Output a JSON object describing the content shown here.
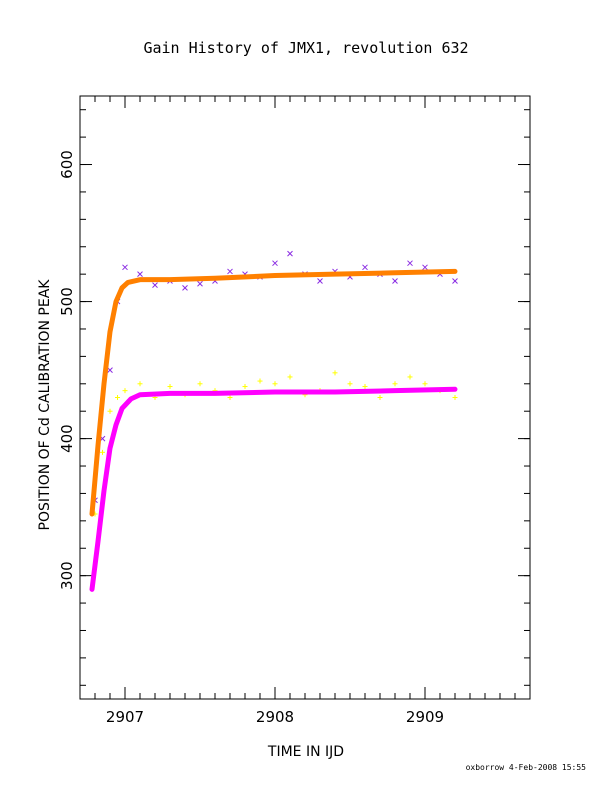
{
  "chart_data": {
    "type": "scatter",
    "title": "Gain History of JMX1, revolution 632",
    "xlabel": "TIME IN IJD",
    "ylabel": "POSITION OF Cd CALIBRATION PEAK",
    "xlim": [
      2906.7,
      2909.7
    ],
    "ylim": [
      210,
      650
    ],
    "xticks": [
      2907,
      2908,
      2909
    ],
    "xtick_labels": [
      "2907",
      "2908",
      "2909"
    ],
    "yticks": [
      300,
      400,
      500,
      600
    ],
    "ytick_labels": [
      "300",
      "400",
      "500",
      "600"
    ],
    "grid": false,
    "series": [
      {
        "marker": "x",
        "color": "#8a2be2",
        "x": [
          2906.8,
          2906.85,
          2906.9,
          2906.95,
          2907.0,
          2907.1,
          2907.2,
          2907.3,
          2907.4,
          2907.5,
          2907.6,
          2907.7,
          2907.8,
          2907.9,
          2908.0,
          2908.1,
          2908.2,
          2908.3,
          2908.4,
          2908.5,
          2908.6,
          2908.7,
          2908.8,
          2908.9,
          2909.0,
          2909.1,
          2909.2
        ],
        "y": [
          355,
          400,
          450,
          500,
          525,
          520,
          512,
          515,
          510,
          513,
          515,
          522,
          520,
          518,
          528,
          535,
          520,
          515,
          522,
          518,
          525,
          520,
          515,
          528,
          525,
          520,
          515
        ]
      },
      {
        "marker": "+",
        "color": "#ffff00",
        "x": [
          2906.8,
          2906.85,
          2906.9,
          2906.95,
          2907.0,
          2907.1,
          2907.2,
          2907.3,
          2907.4,
          2907.5,
          2907.6,
          2907.7,
          2907.8,
          2907.9,
          2908.0,
          2908.1,
          2908.2,
          2908.3,
          2908.4,
          2908.5,
          2908.6,
          2908.7,
          2908.8,
          2908.9,
          2909.0,
          2909.1,
          2909.2
        ],
        "y": [
          345,
          390,
          420,
          430,
          435,
          440,
          430,
          438,
          432,
          440,
          435,
          430,
          438,
          442,
          440,
          445,
          432,
          435,
          448,
          440,
          438,
          430,
          440,
          445,
          440,
          435,
          430
        ]
      },
      {
        "marker": "line",
        "color": "#ff8000",
        "x": [
          2906.78,
          2906.82,
          2906.86,
          2906.9,
          2906.94,
          2906.98,
          2907.02,
          2907.1,
          2907.3,
          2907.6,
          2908.0,
          2908.4,
          2908.8,
          2909.2
        ],
        "y": [
          345,
          395,
          440,
          478,
          500,
          510,
          514,
          516,
          516,
          517,
          519,
          520,
          521,
          522
        ]
      },
      {
        "marker": "line",
        "color": "#ff00ff",
        "x": [
          2906.78,
          2906.82,
          2906.86,
          2906.9,
          2906.94,
          2906.98,
          2907.04,
          2907.1,
          2907.3,
          2907.6,
          2908.0,
          2908.4,
          2908.8,
          2909.2
        ],
        "y": [
          290,
          325,
          362,
          393,
          410,
          422,
          429,
          432,
          433,
          433,
          434,
          434,
          435,
          436
        ]
      }
    ]
  },
  "footer": "oxborrow  4-Feb-2008 15:55",
  "colors": {
    "frame": "#000000",
    "background": "#ffffff"
  }
}
